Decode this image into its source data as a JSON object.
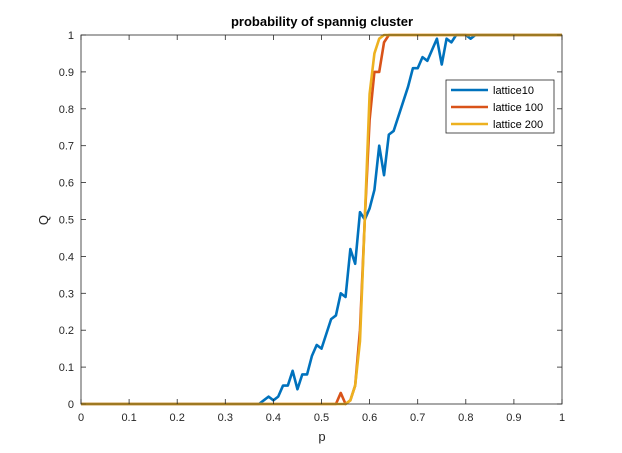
{
  "chart_data": {
    "type": "line",
    "title": "probability of spannig cluster",
    "xlabel": "p",
    "ylabel": "Q",
    "xlim": [
      0,
      1
    ],
    "ylim": [
      0,
      1
    ],
    "xticks": [
      "0",
      "0.1",
      "0.2",
      "0.3",
      "0.4",
      "0.5",
      "0.6",
      "0.7",
      "0.8",
      "0.9",
      "1"
    ],
    "yticks": [
      "0",
      "0.1",
      "0.2",
      "0.3",
      "0.4",
      "0.5",
      "0.6",
      "0.7",
      "0.8",
      "0.9",
      "1"
    ],
    "grid": false,
    "legend_position": "top-right",
    "series": [
      {
        "name": "lattice10",
        "color": "#0072BD",
        "x": [
          0,
          0.37,
          0.38,
          0.39,
          0.4,
          0.41,
          0.42,
          0.43,
          0.44,
          0.45,
          0.46,
          0.47,
          0.48,
          0.49,
          0.5,
          0.51,
          0.52,
          0.53,
          0.54,
          0.55,
          0.56,
          0.57,
          0.58,
          0.59,
          0.6,
          0.61,
          0.62,
          0.63,
          0.64,
          0.65,
          0.66,
          0.67,
          0.68,
          0.69,
          0.7,
          0.71,
          0.72,
          0.73,
          0.74,
          0.75,
          0.76,
          0.77,
          0.78,
          0.79,
          0.8,
          0.81,
          0.82,
          0.83,
          1
        ],
        "y": [
          0,
          0,
          0.01,
          0.02,
          0.01,
          0.02,
          0.05,
          0.05,
          0.09,
          0.04,
          0.08,
          0.08,
          0.13,
          0.16,
          0.15,
          0.19,
          0.23,
          0.24,
          0.3,
          0.29,
          0.42,
          0.38,
          0.52,
          0.5,
          0.53,
          0.58,
          0.7,
          0.62,
          0.73,
          0.74,
          0.78,
          0.82,
          0.86,
          0.91,
          0.91,
          0.94,
          0.93,
          0.96,
          0.99,
          0.92,
          0.99,
          0.98,
          1.0,
          1.0,
          1.0,
          0.99,
          1.0,
          1.0,
          1.0
        ]
      },
      {
        "name": "lattice 100",
        "color": "#D95319",
        "x": [
          0,
          0.53,
          0.54,
          0.55,
          0.56,
          0.57,
          0.58,
          0.59,
          0.6,
          0.61,
          0.62,
          0.63,
          0.64,
          0.65,
          1
        ],
        "y": [
          0,
          0,
          0.03,
          0,
          0.01,
          0.05,
          0.2,
          0.5,
          0.77,
          0.9,
          0.9,
          0.98,
          1.0,
          1.0,
          1.0
        ]
      },
      {
        "name": "lattice 200",
        "color": "#EDB120",
        "x": [
          0,
          0.55,
          0.56,
          0.57,
          0.58,
          0.59,
          0.6,
          0.61,
          0.62,
          0.63,
          0.64,
          1
        ],
        "y": [
          0,
          0,
          0.01,
          0.05,
          0.17,
          0.5,
          0.84,
          0.95,
          0.99,
          1.0,
          1.0,
          1.0
        ]
      }
    ]
  }
}
